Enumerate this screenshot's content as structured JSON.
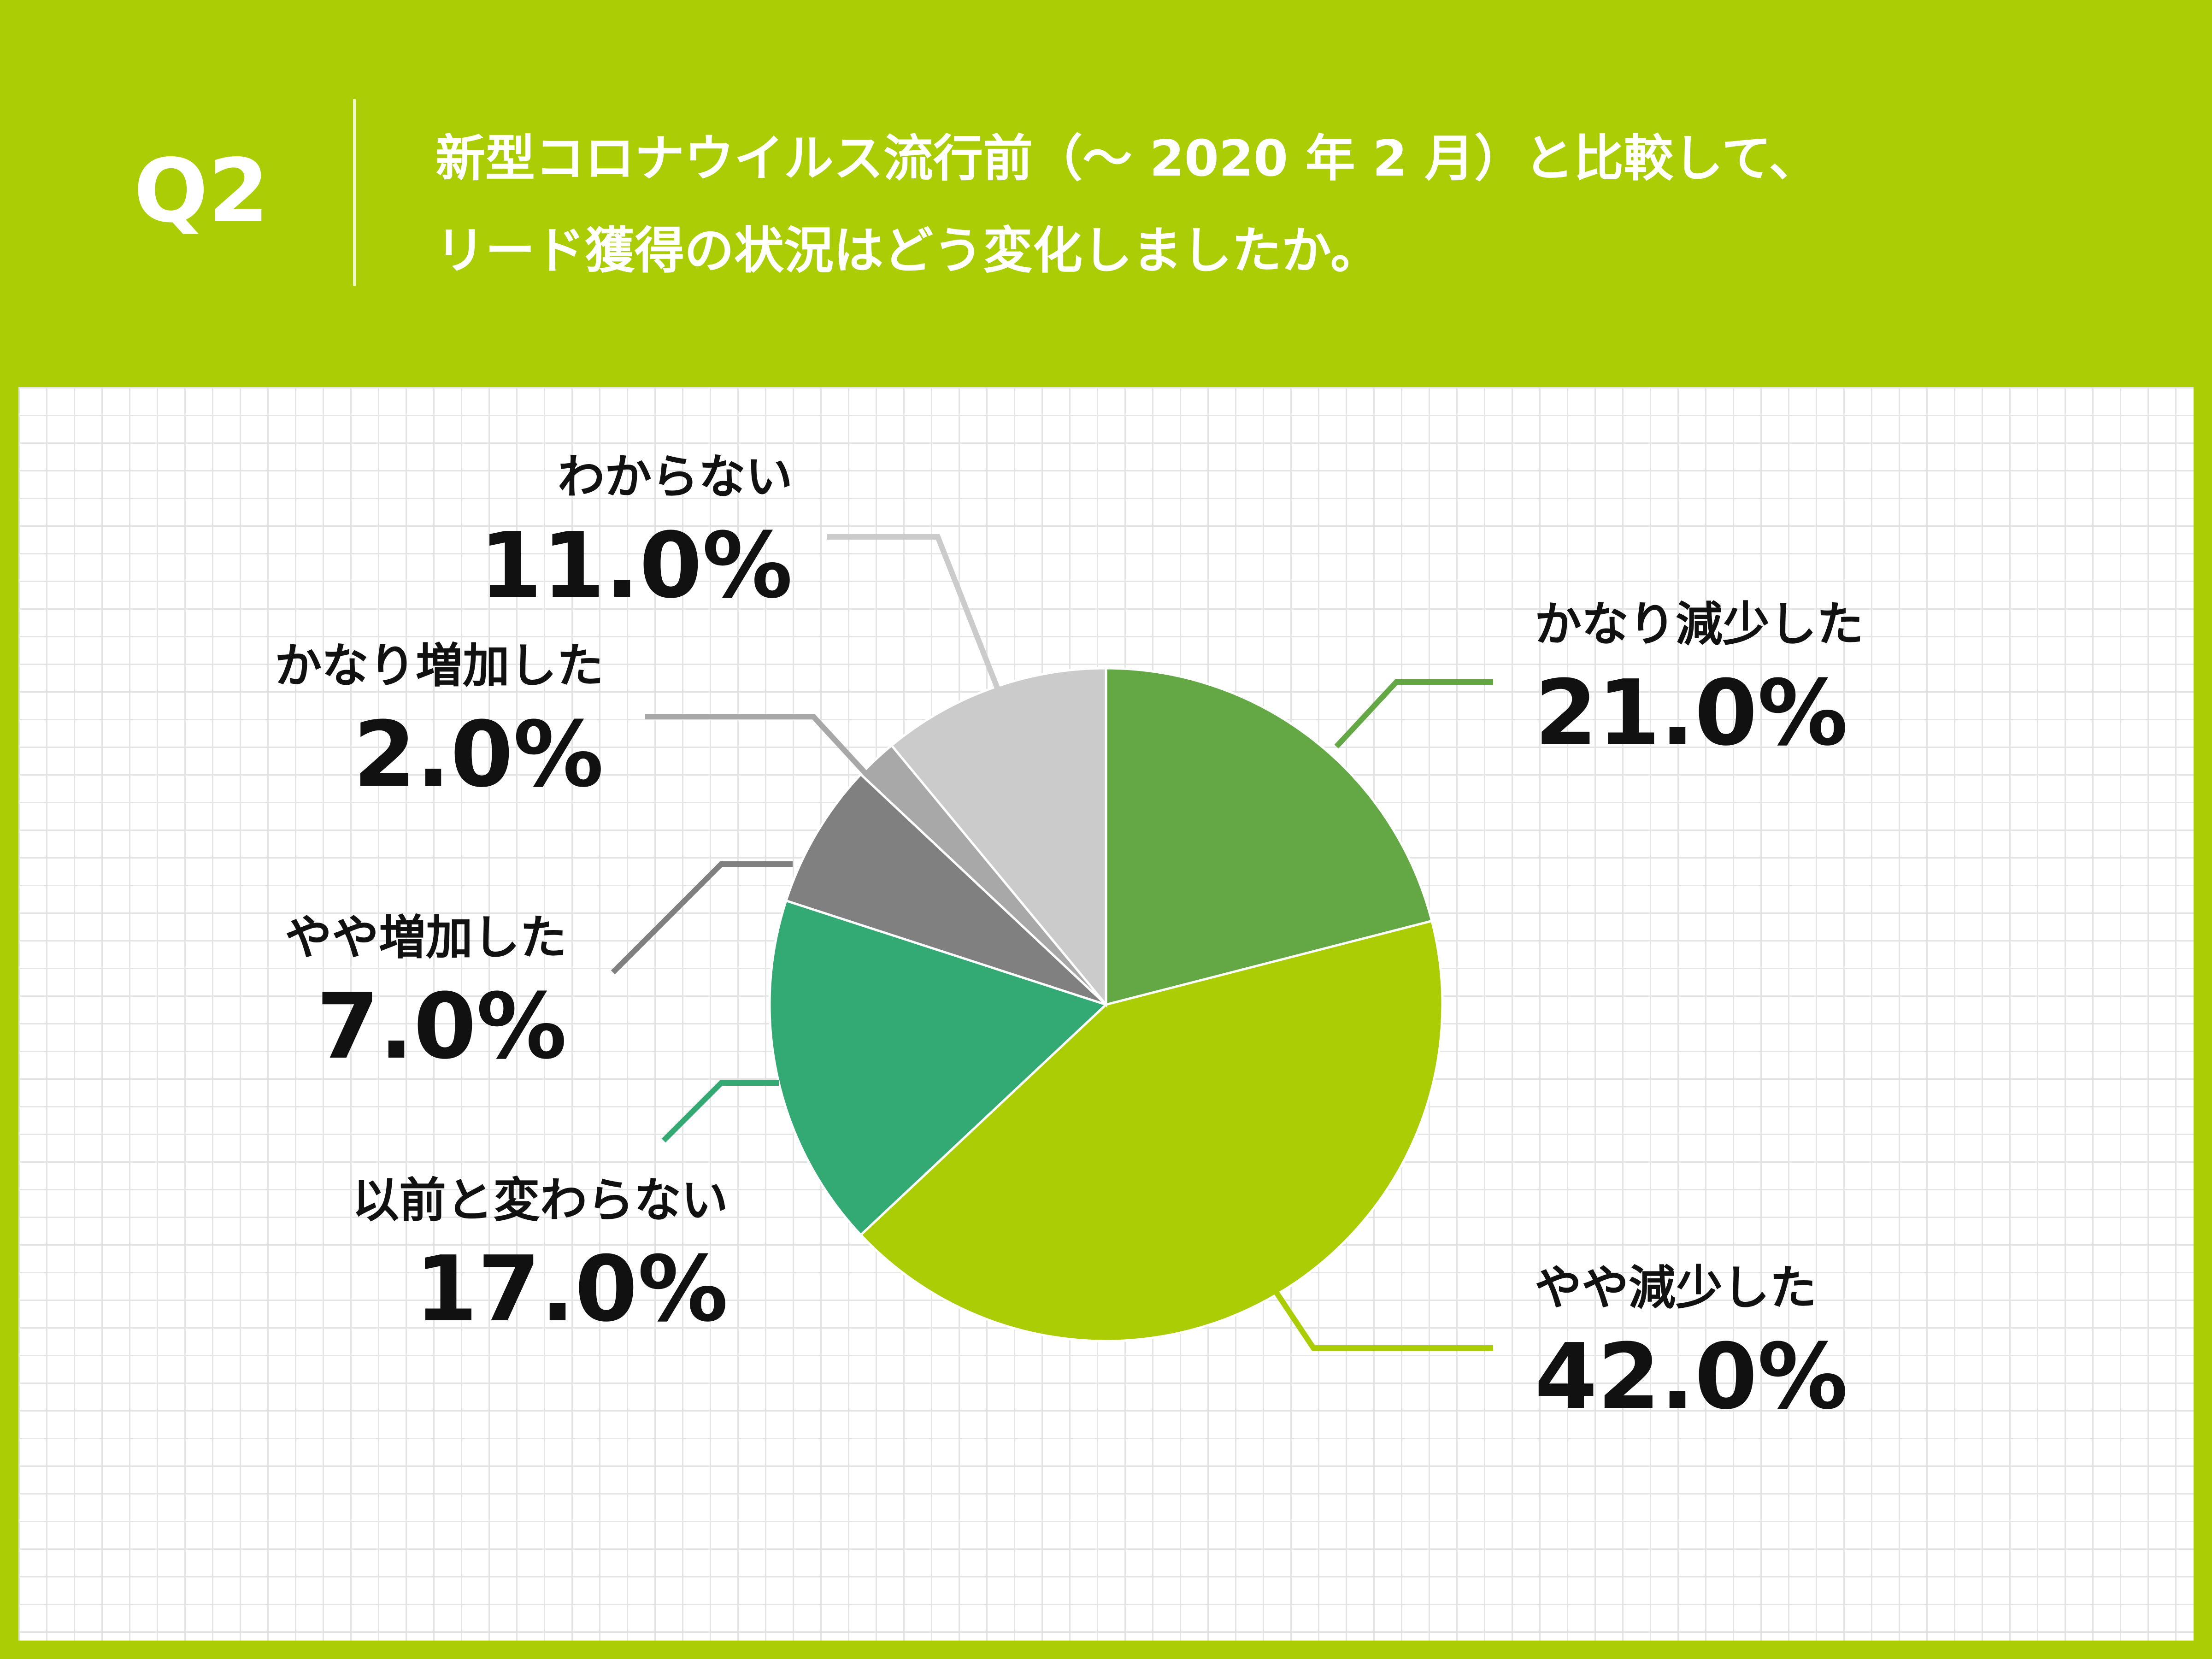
{
  "question": {
    "number": "Q2",
    "lines": [
      "新型コロナウイルス流行前（〜 2020 年 2 月）と比較して、",
      "リード獲得の状況はどう変化しましたか。"
    ]
  },
  "chart_data": {
    "type": "pie",
    "title": "",
    "start": "12 o'clock",
    "direction": "clockwise",
    "slices": [
      {
        "label": "かなり減少した",
        "value": 21.0,
        "display": "21.0%",
        "color": "#63a844"
      },
      {
        "label": "やや減少した",
        "value": 42.0,
        "display": "42.0%",
        "color": "#abcd05"
      },
      {
        "label": "以前と変わらない",
        "value": 17.0,
        "display": "17.0%",
        "color": "#33a974"
      },
      {
        "label": "やや増加した",
        "value": 7.0,
        "display": "7.0%",
        "color": "#808080"
      },
      {
        "label": "かなり増加した",
        "value": 2.0,
        "display": "2.0%",
        "color": "#a8a8a8"
      },
      {
        "label": "わからない",
        "value": 11.0,
        "display": "11.0%",
        "color": "#cbcbcb"
      }
    ]
  }
}
